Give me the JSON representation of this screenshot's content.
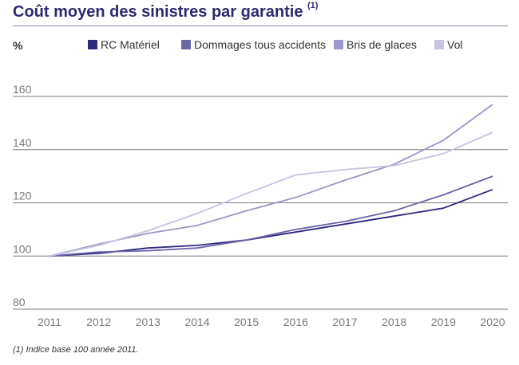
{
  "header": {
    "title": "Coût moyen des sinistres par garantie",
    "title_note": "(1)"
  },
  "unit_label": "%",
  "footnote": "(1) Indice base 100 année 2011.",
  "colors": {
    "rc_materiel": "#2e2a7e",
    "dommages": "#6a64a8",
    "bris": "#9b97c6",
    "vol": "#c7c4e0",
    "grid": "#7a7a7a",
    "tick_text": "#7a7a7a",
    "title": "#2e2a6b"
  },
  "chart_data": {
    "type": "line",
    "title": "Coût moyen des sinistres par garantie",
    "xlabel": "",
    "ylabel": "%",
    "categories": [
      "2011",
      "2012",
      "2013",
      "2014",
      "2015",
      "2016",
      "2017",
      "2018",
      "2019",
      "2020"
    ],
    "yticks": [
      80,
      100,
      120,
      140,
      160
    ],
    "ylim": [
      80,
      160
    ],
    "grid": true,
    "legend_position": "top",
    "series": [
      {
        "name": "RC Matériel",
        "color": "#2e2a7e",
        "values": [
          100,
          101,
          103,
          104,
          106,
          109,
          112,
          115,
          118,
          125
        ]
      },
      {
        "name": "Dommages tous accidents",
        "color": "#6a64a8",
        "values": [
          100,
          101.5,
          102,
          103,
          106,
          110,
          113,
          117,
          123,
          130
        ]
      },
      {
        "name": "Bris de glaces",
        "color": "#9b97c6",
        "values": [
          100,
          104.5,
          108.5,
          111.5,
          117,
          122,
          128.5,
          134.5,
          143.5,
          157
        ]
      },
      {
        "name": "Vol",
        "color": "#c7c4e0",
        "values": [
          100,
          104,
          109.5,
          116,
          123.5,
          130.5,
          132.5,
          134,
          138.5,
          146.5
        ]
      }
    ]
  }
}
